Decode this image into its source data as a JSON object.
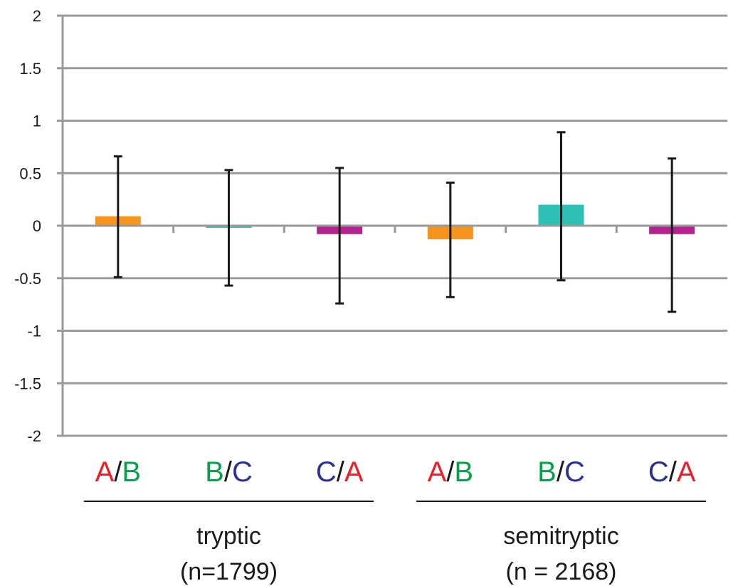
{
  "chart_data": {
    "type": "bar",
    "title": "",
    "xlabel": "",
    "ylabel": "",
    "ylim": [
      -2,
      2
    ],
    "yticks": [
      -2,
      -1.5,
      -1,
      -0.5,
      0,
      0.5,
      1,
      1.5,
      2
    ],
    "ytick_labels": [
      "-2",
      "-1.5",
      "-1",
      "-0.5",
      "0",
      "0.5",
      "1",
      "1.5",
      "2"
    ],
    "grid": true,
    "legend": "none",
    "letter_colors": {
      "A": "#e8202a",
      "B": "#0aa04b",
      "C": "#2e3192",
      "slash": "#1a1a1a"
    },
    "bars": [
      {
        "num": "A",
        "den": "B",
        "value": 0.09,
        "err_low": -0.49,
        "err_high": 0.66,
        "color": "#f7941d"
      },
      {
        "num": "B",
        "den": "C",
        "value": -0.02,
        "err_low": -0.57,
        "err_high": 0.53,
        "color": "#2ebfb5"
      },
      {
        "num": "C",
        "den": "A",
        "value": -0.08,
        "err_low": -0.74,
        "err_high": 0.55,
        "color": "#b5218e"
      },
      {
        "num": "A",
        "den": "B",
        "value": -0.13,
        "err_low": -0.68,
        "err_high": 0.41,
        "color": "#f7941d"
      },
      {
        "num": "B",
        "den": "C",
        "value": 0.2,
        "err_low": -0.52,
        "err_high": 0.89,
        "color": "#2ebfb5"
      },
      {
        "num": "C",
        "den": "A",
        "value": -0.08,
        "err_low": -0.82,
        "err_high": 0.64,
        "color": "#b5218e"
      }
    ],
    "groups": [
      {
        "name": "tryptic",
        "n_label": "(n=1799)",
        "bars": [
          0,
          1,
          2
        ]
      },
      {
        "name": "semitryptic",
        "n_label": "(n = 2168)",
        "bars": [
          3,
          4,
          5
        ]
      }
    ]
  }
}
